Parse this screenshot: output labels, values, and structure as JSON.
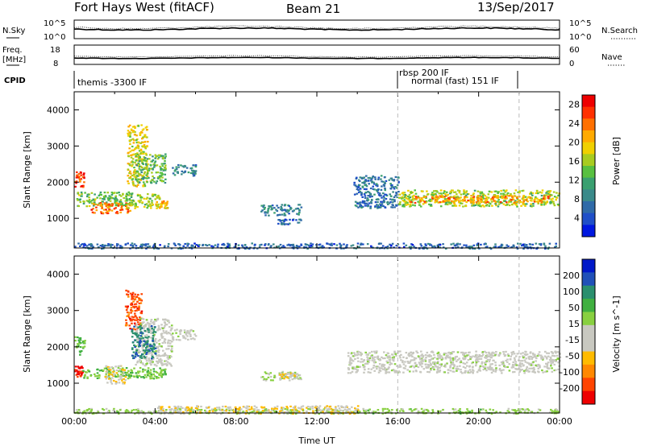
{
  "header": {
    "site": "Fort Hays West (fitACF)",
    "beam": "Beam 21",
    "date": "13/Sep/2017"
  },
  "small_panels": {
    "nsky_label": "N.Sky",
    "nsky_ticks": [
      "10^5",
      "10^0"
    ],
    "nsearch_label": "N.Search",
    "nsearch_ticks": [
      "10^5",
      "10^0"
    ],
    "freq_label": "Freq.",
    "freq_unit": "[MHz]",
    "freq_ticks": [
      "18",
      "8"
    ],
    "nave_label": "Nave",
    "nave_ticks": [
      "60",
      "0"
    ],
    "cpid_label": "CPID"
  },
  "cpid_segments": [
    {
      "label": "themis -3300 IF",
      "start_hour": 0
    },
    {
      "label": "rbsp 200 IF",
      "start_hour": 16
    },
    {
      "label": "normal (fast) 151 IF",
      "start_hour": 16
    }
  ],
  "chart_data": [
    {
      "type": "heatmap",
      "title": "",
      "ylabel": "Slant Range [km]",
      "xlabel": "",
      "xlim_hours": [
        0,
        24
      ],
      "ylim": [
        180,
        4500
      ],
      "y_ticks": [
        "4000",
        "3000",
        "2000",
        "1000"
      ],
      "y_tick_values": [
        4000,
        3000,
        2000,
        1000
      ],
      "vlines_hours": [
        16,
        22
      ],
      "colorbar": {
        "label": "Power [dB]",
        "ticks": [
          "28",
          "24",
          "20",
          "16",
          "12",
          "8",
          "4"
        ],
        "tick_values": [
          28,
          24,
          20,
          16,
          12,
          8,
          4
        ],
        "range": [
          0,
          30
        ],
        "colors": [
          "#0018e0",
          "#1f4fc8",
          "#2f6aa8",
          "#3a8a8a",
          "#3aa070",
          "#58c040",
          "#a8cc20",
          "#f0d000",
          "#ffaa00",
          "#ff7000",
          "#ff3000",
          "#ee0000"
        ]
      },
      "regions": [
        {
          "h0": 0.0,
          "h1": 0.5,
          "r0": 1850,
          "r1": 2300,
          "value": 26
        },
        {
          "h0": 0.1,
          "h1": 3.0,
          "r0": 1350,
          "r1": 1750,
          "value": 14
        },
        {
          "h0": 0.8,
          "h1": 2.8,
          "r0": 1150,
          "r1": 1450,
          "value": 24
        },
        {
          "h0": 2.5,
          "h1": 4.2,
          "r0": 1300,
          "r1": 1700,
          "value": 16
        },
        {
          "h0": 2.6,
          "h1": 3.6,
          "r0": 1900,
          "r1": 3600,
          "value": 18
        },
        {
          "h0": 3.0,
          "h1": 4.5,
          "r0": 2000,
          "r1": 2800,
          "value": 13
        },
        {
          "h0": 4.0,
          "h1": 4.6,
          "r0": 1300,
          "r1": 1500,
          "value": 20
        },
        {
          "h0": 4.8,
          "h1": 6.0,
          "r0": 2200,
          "r1": 2500,
          "value": 8
        },
        {
          "h0": 9.2,
          "h1": 11.2,
          "r0": 1100,
          "r1": 1400,
          "value": 8
        },
        {
          "h0": 10.0,
          "h1": 11.2,
          "r0": 850,
          "r1": 1000,
          "value": 6
        },
        {
          "h0": 13.8,
          "h1": 16.0,
          "r0": 1300,
          "r1": 2200,
          "value": 7
        },
        {
          "h0": 16.0,
          "h1": 24.0,
          "r0": 1350,
          "r1": 1800,
          "value": 16
        },
        {
          "h0": 16.5,
          "h1": 23.5,
          "r0": 1450,
          "r1": 1650,
          "value": 22
        },
        {
          "h0": 0.0,
          "h1": 24.0,
          "r0": 180,
          "r1": 330,
          "value": 6
        }
      ]
    },
    {
      "type": "heatmap",
      "title": "",
      "ylabel": "Slant Range [km]",
      "xlabel": "Time UT",
      "xlim_hours": [
        0,
        24
      ],
      "ylim": [
        180,
        4500
      ],
      "x_ticks": [
        "00:00",
        "04:00",
        "08:00",
        "12:00",
        "16:00",
        "20:00",
        "00:00"
      ],
      "x_tick_hours": [
        0,
        4,
        8,
        12,
        16,
        20,
        24
      ],
      "y_ticks": [
        "4000",
        "3000",
        "2000",
        "1000"
      ],
      "y_tick_values": [
        4000,
        3000,
        2000,
        1000
      ],
      "vlines_hours": [
        16,
        22
      ],
      "colorbar": {
        "label": "Velocity [m s^-1]",
        "ticks": [
          "200",
          "100",
          "50",
          "15",
          "-15",
          "-50",
          "-100",
          "-200"
        ],
        "tick_values": [
          200,
          100,
          50,
          15,
          -15,
          -50,
          -100,
          -200
        ],
        "range": [
          -250,
          250
        ],
        "colors": [
          "#ee0000",
          "#ff4400",
          "#ff8800",
          "#ffbb00",
          "#c8c8c0",
          "#c8c8c0",
          "#88d040",
          "#40b040",
          "#2a8f6e",
          "#2050b8",
          "#0018c8"
        ]
      },
      "regions": [
        {
          "h0": 0.0,
          "h1": 0.5,
          "r0": 1800,
          "r1": 2300,
          "value": 80
        },
        {
          "h0": 0.0,
          "h1": 0.4,
          "r0": 1200,
          "r1": 1500,
          "value": -220
        },
        {
          "h0": 0.4,
          "h1": 4.5,
          "r0": 1150,
          "r1": 1450,
          "value": 60
        },
        {
          "h0": 1.5,
          "h1": 2.5,
          "r0": 1000,
          "r1": 1500,
          "value": -60
        },
        {
          "h0": 2.5,
          "h1": 3.3,
          "r0": 2500,
          "r1": 3600,
          "value": -180
        },
        {
          "h0": 3.0,
          "h1": 4.8,
          "r0": 1500,
          "r1": 2800,
          "value": 0
        },
        {
          "h0": 2.8,
          "h1": 4.0,
          "r0": 1700,
          "r1": 2600,
          "value": 150
        },
        {
          "h0": 4.8,
          "h1": 6.0,
          "r0": 2200,
          "r1": 2500,
          "value": 0
        },
        {
          "h0": 9.2,
          "h1": 11.2,
          "r0": 1100,
          "r1": 1350,
          "value": 30
        },
        {
          "h0": 10.0,
          "h1": 11.0,
          "r0": 1150,
          "r1": 1300,
          "value": -60
        },
        {
          "h0": 13.5,
          "h1": 24.0,
          "r0": 1300,
          "r1": 1900,
          "value": 0
        },
        {
          "h0": 0.0,
          "h1": 24.0,
          "r0": 180,
          "r1": 320,
          "value": 40
        },
        {
          "h0": 4.0,
          "h1": 14.0,
          "r0": 180,
          "r1": 400,
          "value": -60
        }
      ]
    }
  ]
}
